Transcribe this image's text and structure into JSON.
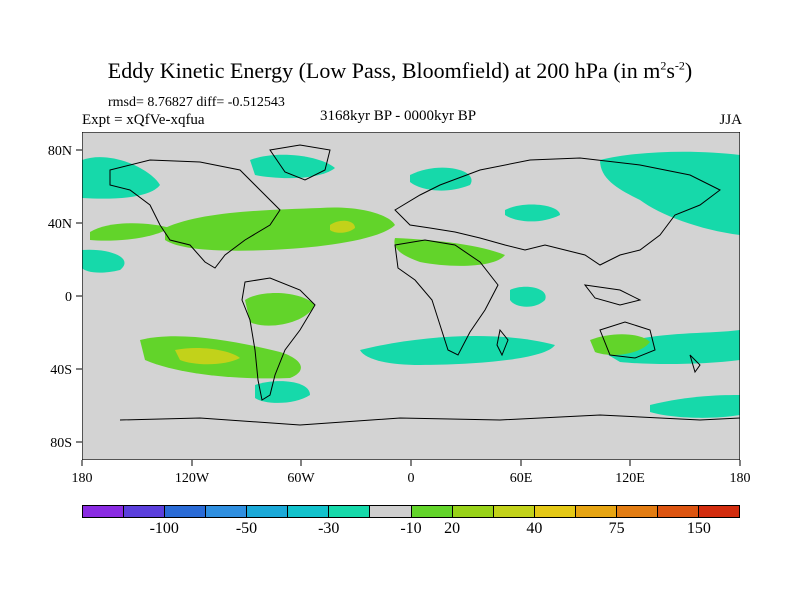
{
  "title_main": "Eddy Kinetic Energy (Low Pass, Bloomfield) at 200 hPa (in m",
  "title_sup1": "2",
  "title_mid": "s",
  "title_sup2": "-2",
  "title_end": ")",
  "stats": "rmsd= 8.76827  diff= -0.512543",
  "expt": "Expt = xQfVe-xqfua",
  "period": "3168kyr BP - 0000kyr BP",
  "season": "JJA",
  "lat_ticks": [
    "80N",
    "40N",
    "0",
    "40S",
    "80S"
  ],
  "lon_ticks": [
    "180",
    "120W",
    "60W",
    "0",
    "60E",
    "120E",
    "180"
  ],
  "colorbar": {
    "colors": [
      "#8a2be2",
      "#5b3fdc",
      "#2a6bd6",
      "#2f8fe0",
      "#1ba9d8",
      "#12c2cc",
      "#16d9aa",
      "#cfcfcf",
      "#62d42a",
      "#98d219",
      "#c2d21a",
      "#e4c816",
      "#e6a412",
      "#e27c12",
      "#dc5410",
      "#d22c0e"
    ],
    "labels": [
      "-100",
      "-50",
      "-30",
      "-10",
      "20",
      "40",
      "75",
      "150"
    ]
  },
  "colors": {
    "background_field": "#d3d3d3",
    "land_outline": "#000000",
    "green": "#62d42a",
    "teal": "#16d9aa",
    "yellow": "#c2d21a"
  }
}
